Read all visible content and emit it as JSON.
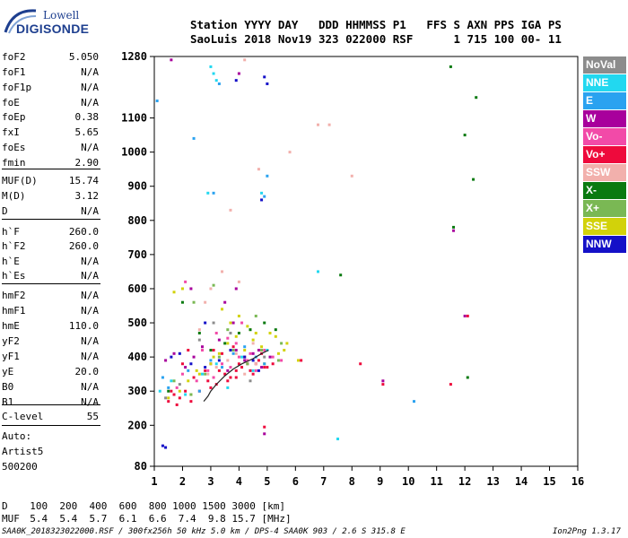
{
  "logo": {
    "line1": "Lowell",
    "line2": "DIGISONDE"
  },
  "header": {
    "line1": "Station YYYY DAY   DDD HHMMSS P1   FFS S AXN PPS IGA PS",
    "line2": "SaoLuis 2018 Nov19 323 022000 RSF      1 715 100 00- 11"
  },
  "params": [
    {
      "name": "foF2",
      "value": "5.050"
    },
    {
      "name": "foF1",
      "value": "N/A"
    },
    {
      "name": "foF1p",
      "value": "N/A"
    },
    {
      "name": "foE",
      "value": "N/A"
    },
    {
      "name": "foEp",
      "value": "0.38"
    },
    {
      "name": "fxI",
      "value": "5.65"
    },
    {
      "name": "foEs",
      "value": "N/A"
    },
    {
      "name": "fmin",
      "value": "2.90"
    },
    {
      "name": "MUF(D)",
      "value": "15.74"
    },
    {
      "name": "M(D)",
      "value": "3.12"
    },
    {
      "name": "D",
      "value": "N/A"
    },
    {
      "name": "h`F",
      "value": "260.0"
    },
    {
      "name": "h`F2",
      "value": "260.0"
    },
    {
      "name": "h`E",
      "value": "N/A"
    },
    {
      "name": "h`Es",
      "value": "N/A"
    },
    {
      "name": "hmF2",
      "value": "N/A"
    },
    {
      "name": "hmF1",
      "value": "N/A"
    },
    {
      "name": "hmE",
      "value": "110.0"
    },
    {
      "name": "yF2",
      "value": "N/A"
    },
    {
      "name": "yF1",
      "value": "N/A"
    },
    {
      "name": "yE",
      "value": "20.0"
    },
    {
      "name": "B0",
      "value": "N/A"
    },
    {
      "name": "B1",
      "value": "N/A"
    },
    {
      "name": "C-level",
      "value": "55"
    }
  ],
  "autoscaler": {
    "line1": "Auto:",
    "line2": "Artist5",
    "line3": "500200"
  },
  "legend": [
    {
      "label": "NoVal",
      "color": "#8c8c8c"
    },
    {
      "label": "NNE",
      "color": "#22d8f0"
    },
    {
      "label": "E",
      "color": "#2aa2f0"
    },
    {
      "label": "W",
      "color": "#a8009c"
    },
    {
      "label": "Vo-",
      "color": "#f24aa8"
    },
    {
      "label": "Vo+",
      "color": "#ee0a3c"
    },
    {
      "label": "SSW",
      "color": "#f2b0ac"
    },
    {
      "label": "X-",
      "color": "#0a7a10"
    },
    {
      "label": "X+",
      "color": "#7ab854"
    },
    {
      "label": "SSE",
      "color": "#d2d20a"
    },
    {
      "label": "NNW",
      "color": "#1410c8"
    }
  ],
  "bottom": {
    "d_label": "D",
    "d_values": "  100  200  400  600  800 1000 1500 3000 [km]",
    "muf_label": "MUF",
    "muf_values": "  5.4  5.4  5.7  6.1  6.6  7.4  9.8 15.7 [MHz]"
  },
  "footer": {
    "left": "SAA0K_2018323022000.RSF / 300fx256h 50 kHz 5.0 km / DPS-4 SAA0K 903 / 2.6 S 315.8 E",
    "right": "Ion2Png 1.3.17"
  },
  "chart_data": {
    "type": "scatter",
    "xlabel": "",
    "ylabel": "",
    "xlim": [
      1,
      16
    ],
    "ylim": [
      80,
      1280
    ],
    "x_ticks": [
      1,
      2,
      3,
      4,
      5,
      6,
      7,
      8,
      9,
      10,
      11,
      12,
      13,
      14,
      15,
      16
    ],
    "y_ticks": [
      80,
      200,
      300,
      400,
      500,
      600,
      700,
      800,
      900,
      1000,
      1100,
      1280
    ],
    "grid": false,
    "legend_position": "right",
    "trace": {
      "name": "",
      "x": [
        2.75,
        2.9,
        3.0,
        3.2,
        3.5,
        3.8,
        4.1,
        4.5,
        4.8,
        5.05
      ],
      "y": [
        270,
        285,
        300,
        320,
        345,
        365,
        380,
        395,
        410,
        420
      ]
    },
    "series": [
      {
        "name": "Vo+",
        "x": [
          1.5,
          1.7,
          1.9,
          2.1,
          2.3,
          2.6,
          2.9,
          3.2,
          3.5,
          3.7,
          3.9,
          4.1,
          4.3,
          4.5,
          4.7,
          4.9,
          3.4,
          3.8,
          4.2,
          2.2,
          2.0,
          1.8,
          3.0,
          3.3,
          3.6,
          4.0,
          4.4,
          4.8,
          5.2,
          2.8,
          3.1,
          3.9,
          4.6,
          5.0,
          1.6,
          2.4,
          6.2,
          8.3,
          9.1,
          12.1,
          11.5,
          4.9
        ],
        "y": [
          270,
          290,
          280,
          300,
          270,
          300,
          330,
          320,
          350,
          340,
          360,
          370,
          380,
          350,
          390,
          370,
          410,
          430,
          400,
          420,
          380,
          260,
          310,
          360,
          330,
          380,
          360,
          410,
          380,
          360,
          420,
          340,
          380,
          370,
          300,
          340,
          390,
          380,
          320,
          520,
          320,
          195
        ]
      },
      {
        "name": "Vo-",
        "x": [
          1.8,
          2.0,
          2.5,
          2.9,
          3.1,
          3.4,
          3.7,
          4.0,
          4.3,
          4.6,
          4.9,
          5.2,
          3.2,
          2.7,
          3.9,
          4.4,
          2.1,
          4.1,
          3.6,
          5.5
        ],
        "y": [
          310,
          350,
          330,
          360,
          340,
          380,
          370,
          400,
          390,
          360,
          420,
          400,
          470,
          420,
          440,
          410,
          620,
          500,
          455,
          390
        ]
      },
      {
        "name": "W",
        "x": [
          1.4,
          1.7,
          2.1,
          2.4,
          2.7,
          3.0,
          3.3,
          3.6,
          3.9,
          4.2,
          4.5,
          4.8,
          5.1,
          3.5,
          3.9,
          1.6,
          4.0,
          2.3,
          4.9,
          12.0,
          9.1,
          11.6,
          4.7,
          3.8
        ],
        "y": [
          390,
          410,
          370,
          400,
          430,
          380,
          450,
          360,
          420,
          390,
          410,
          370,
          400,
          560,
          600,
          1270,
          1230,
          600,
          175,
          520,
          330,
          770,
          420,
          500
        ]
      },
      {
        "name": "SSE",
        "x": [
          1.5,
          1.9,
          2.2,
          2.6,
          3.0,
          3.3,
          3.6,
          3.9,
          4.2,
          4.5,
          4.8,
          5.1,
          5.4,
          5.7,
          4.3,
          3.7,
          4.0,
          4.6,
          5.3,
          2.0,
          1.7,
          3.4,
          4.9,
          6.1,
          2.5,
          3.1,
          4.4,
          5.6,
          2.3
        ],
        "y": [
          280,
          300,
          330,
          350,
          380,
          410,
          440,
          460,
          420,
          450,
          430,
          470,
          410,
          440,
          490,
          500,
          520,
          470,
          460,
          600,
          590,
          540,
          380,
          390,
          360,
          400,
          480,
          420,
          290
        ]
      },
      {
        "name": "SSW",
        "x": [
          2.9,
          3.2,
          3.6,
          3.9,
          4.2,
          4.5,
          3.0,
          3.4,
          4.0,
          2.6,
          4.6,
          5.8,
          6.8,
          4.7,
          8.0,
          7.2,
          4.2,
          3.7,
          2.8
        ],
        "y": [
          350,
          370,
          390,
          410,
          350,
          440,
          600,
          650,
          620,
          480,
          380,
          1000,
          1080,
          950,
          930,
          1080,
          1270,
          830,
          560
        ]
      },
      {
        "name": "E",
        "x": [
          1.3,
          1.5,
          2.2,
          2.6,
          3.0,
          3.4,
          3.8,
          4.2,
          4.6,
          4.9,
          5.0,
          3.1,
          3.3,
          4.9,
          2.4,
          10.2,
          1.1
        ],
        "y": [
          340,
          310,
          360,
          300,
          390,
          370,
          410,
          430,
          400,
          380,
          930,
          880,
          1200,
          870,
          1040,
          270,
          1150
        ]
      },
      {
        "name": "NNE",
        "x": [
          1.2,
          1.6,
          2.1,
          2.7,
          3.2,
          3.6,
          4.1,
          4.5,
          5.0,
          3.0,
          3.1,
          3.2,
          2.9,
          7.5,
          6.8,
          4.8
        ],
        "y": [
          300,
          330,
          290,
          350,
          380,
          310,
          400,
          360,
          420,
          1250,
          1230,
          1210,
          880,
          160,
          650,
          880
        ]
      },
      {
        "name": "X-",
        "x": [
          1.5,
          2.0,
          2.6,
          3.0,
          3.5,
          4.0,
          4.4,
          4.9,
          5.3,
          11.5,
          12.4,
          12.0,
          11.6,
          12.1,
          12.3,
          7.6
        ],
        "y": [
          300,
          560,
          470,
          420,
          440,
          470,
          480,
          500,
          480,
          1250,
          1160,
          1050,
          780,
          340,
          920,
          640
        ]
      },
      {
        "name": "X+",
        "x": [
          1.7,
          2.3,
          2.8,
          3.3,
          3.8,
          4.3,
          4.8,
          5.4,
          3.1,
          2.4,
          4.6,
          5.5,
          3.6
        ],
        "y": [
          330,
          290,
          350,
          400,
          420,
          380,
          420,
          390,
          610,
          560,
          520,
          440,
          480
        ]
      },
      {
        "name": "NNW",
        "x": [
          1.6,
          1.9,
          2.3,
          2.8,
          3.3,
          3.7,
          4.2,
          4.7,
          4.9,
          5.0,
          1.3,
          1.4,
          2.8,
          3.9,
          4.5,
          4.8
        ],
        "y": [
          400,
          410,
          380,
          370,
          390,
          420,
          400,
          360,
          1220,
          1200,
          140,
          135,
          500,
          1210,
          390,
          860
        ]
      },
      {
        "name": "NoVal",
        "x": [
          1.4,
          2.6,
          3.7,
          4.4,
          1.9,
          3.1,
          4.9
        ],
        "y": [
          280,
          450,
          470,
          330,
          320,
          500,
          400
        ]
      }
    ]
  }
}
